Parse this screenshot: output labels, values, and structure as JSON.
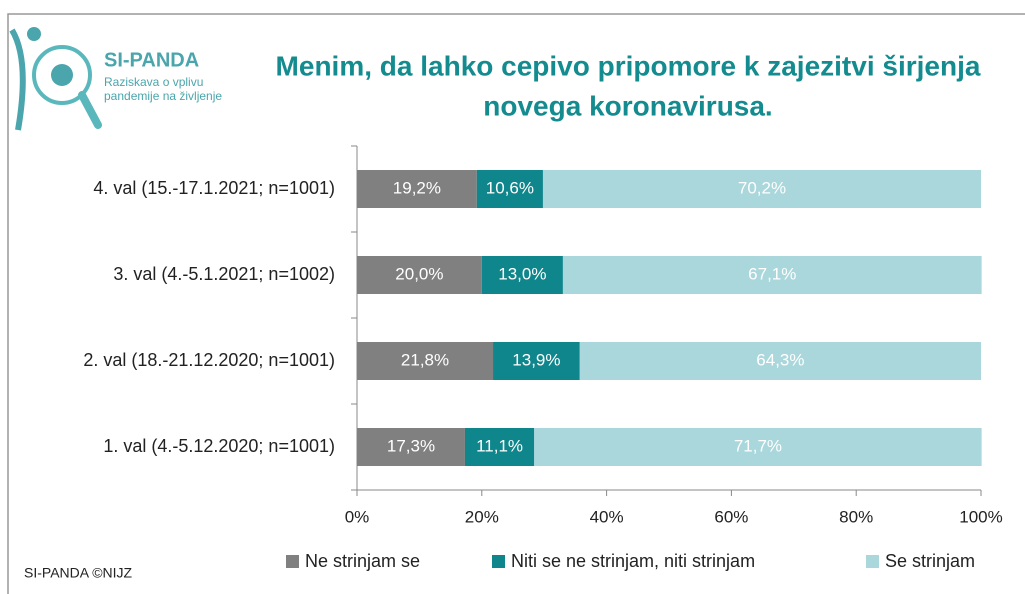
{
  "logo": {
    "name": "SI-PANDA",
    "subtitle_lines": [
      "Raziskava o vplivu",
      "pandemije na življenje"
    ]
  },
  "footer": "SI-PANDA ©NIJZ",
  "chart_data": {
    "type": "stacked-barh",
    "title": [
      "Menim, da lahko cepivo pripomore k zajezitvi širjenja",
      "novega koronavirusa."
    ],
    "categories": [
      "4. val (15.-17.1.2021; n=1001)",
      "3. val (4.-5.1.2021; n=1002)",
      "2. val (18.-21.12.2020; n=1001)",
      "1. val (4.-5.12.2020; n=1001)"
    ],
    "series": [
      {
        "name": "Ne strinjam se",
        "color": "#808080",
        "values": [
          19.2,
          20.0,
          21.8,
          17.3
        ],
        "value_labels": [
          "19,2%",
          "20,0%",
          "21,8%",
          "17,3%"
        ]
      },
      {
        "name": "Niti se ne strinjam, niti strinjam",
        "color": "#0e868c",
        "values": [
          10.6,
          13.0,
          13.9,
          11.1
        ],
        "value_labels": [
          "10,6%",
          "13,0%",
          "13,9%",
          "11,1%"
        ]
      },
      {
        "name": "Se strinjam",
        "color": "#a9d7db",
        "values": [
          70.2,
          67.1,
          64.3,
          71.7
        ],
        "value_labels": [
          "70,2%",
          "67,1%",
          "64,3%",
          "71,7%"
        ]
      }
    ],
    "xlim": [
      0,
      100
    ],
    "xticks": [
      {
        "value": 0,
        "label": "0%"
      },
      {
        "value": 20,
        "label": "20%"
      },
      {
        "value": 40,
        "label": "40%"
      },
      {
        "value": 60,
        "label": "60%"
      },
      {
        "value": 80,
        "label": "80%"
      },
      {
        "value": 100,
        "label": "100%"
      }
    ],
    "legend": "bottom"
  }
}
